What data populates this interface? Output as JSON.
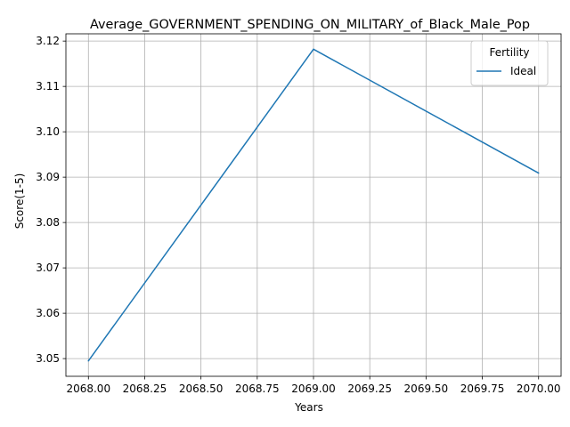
{
  "chart_data": {
    "type": "line",
    "title": "Average_GOVERNMENT_SPENDING_ON_MILITARY_of_Black_Male_Pop",
    "xlabel": "Years",
    "ylabel": "Score(1-5)",
    "x": [
      2068.0,
      2069.0,
      2070.0
    ],
    "series": [
      {
        "name": "Ideal",
        "values": [
          3.0495,
          3.1182,
          3.0909
        ],
        "color": "#1f77b4"
      }
    ],
    "xlim": [
      2067.9,
      2070.1
    ],
    "ylim": [
      3.0461,
      3.1216
    ],
    "xticks": [
      2068.0,
      2068.25,
      2068.5,
      2068.75,
      2069.0,
      2069.25,
      2069.5,
      2069.75,
      2070.0
    ],
    "xtick_labels": [
      "2068.00",
      "2068.25",
      "2068.50",
      "2068.75",
      "2069.00",
      "2069.25",
      "2069.50",
      "2069.75",
      "2070.00"
    ],
    "yticks": [
      3.05,
      3.06,
      3.07,
      3.08,
      3.09,
      3.1,
      3.11,
      3.12
    ],
    "ytick_labels": [
      "3.05",
      "3.06",
      "3.07",
      "3.08",
      "3.09",
      "3.10",
      "3.11",
      "3.12"
    ],
    "grid": true,
    "legend": {
      "title": "Fertility",
      "position": "top-right"
    }
  }
}
